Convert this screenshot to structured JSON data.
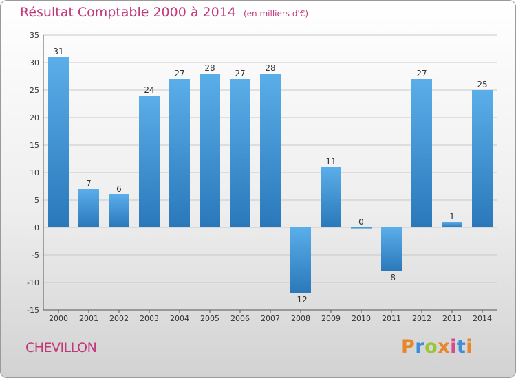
{
  "header": {
    "title": "Résultat Comptable 2000 à 2014",
    "unit": "(en milliers d'€)"
  },
  "footer": {
    "commune": "CHEVILLON",
    "logo": "Proxiti",
    "logo_letters": [
      "P",
      "r",
      "o",
      "x",
      "i",
      "t",
      "i"
    ]
  },
  "colors": {
    "title": "#c0397a",
    "bar_light": "#5aaee9",
    "bar_dark": "#2a78ba",
    "grid": "#c8c8c8"
  },
  "chart_data": {
    "type": "bar",
    "title": "Résultat Comptable 2000 à 2014",
    "subtitle": "(en milliers d'€)",
    "xlabel": "",
    "ylabel": "",
    "categories": [
      "2000",
      "2001",
      "2002",
      "2003",
      "2004",
      "2005",
      "2006",
      "2007",
      "2008",
      "2009",
      "2010",
      "2011",
      "2012",
      "2013",
      "2014"
    ],
    "values": [
      31,
      7,
      6,
      24,
      27,
      28,
      27,
      28,
      -12,
      11,
      0,
      -8,
      27,
      1,
      25
    ],
    "ylim": [
      -15,
      35
    ],
    "yticks": [
      35,
      30,
      25,
      20,
      15,
      10,
      5,
      0,
      -5,
      -10,
      -15
    ],
    "grid": true,
    "legend": "none"
  }
}
